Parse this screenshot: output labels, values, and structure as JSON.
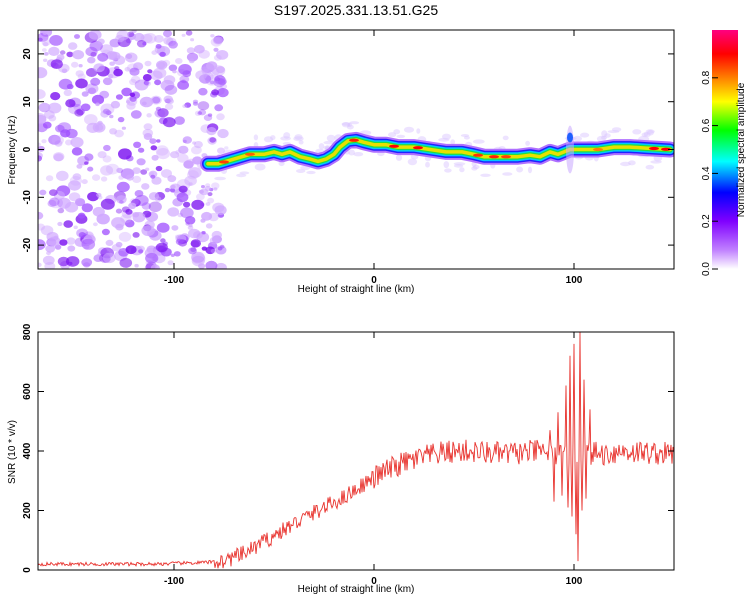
{
  "title": "S197.2025.331.13.51.G25",
  "chart_data": [
    {
      "type": "heatmap",
      "name": "spectrogram",
      "xlabel": "Height of straight line (km)",
      "ylabel": "Frequency (Hz)",
      "xlim": [
        -168,
        150
      ],
      "ylim": [
        -25,
        25
      ],
      "xticks": [
        -100,
        0,
        100
      ],
      "yticks": [
        -20,
        -10,
        0,
        10,
        20
      ],
      "xtick_labels": [
        "-100",
        "0",
        "100"
      ],
      "ytick_labels": [
        "-20",
        "-10",
        "0",
        "10",
        "20"
      ],
      "noise_region_x": [
        -168,
        -75
      ],
      "ridge": {
        "x": [
          -83,
          -78,
          -70,
          -62,
          -55,
          -50,
          -46,
          -42,
          -37,
          -32,
          -28,
          -24,
          -20,
          -17,
          -13,
          -9,
          -5,
          0,
          6,
          12,
          20,
          28,
          36,
          44,
          50,
          55,
          60,
          66,
          72,
          78,
          83,
          88,
          92,
          95,
          98,
          100,
          103,
          106,
          112,
          120,
          128,
          136,
          148
        ],
        "y": [
          -3,
          -3,
          -2,
          -1,
          -1,
          -0.5,
          -1,
          -0.5,
          -1.5,
          -2,
          -2.5,
          -2,
          -1,
          0.5,
          1.8,
          2,
          1.5,
          1,
          1,
          0.5,
          0.5,
          0,
          -0.5,
          -0.5,
          -1,
          -1.5,
          -1.5,
          -1.5,
          -1.5,
          -1.2,
          -1.5,
          -0.5,
          -1,
          -0.5,
          0,
          0,
          0,
          0,
          0,
          0.5,
          0.5,
          0.3,
          0
        ]
      },
      "colorbar": {
        "label": "Normalized spectral amplitude",
        "range": [
          0,
          1
        ],
        "ticks": [
          0.0,
          0.2,
          0.4,
          0.6,
          0.8
        ],
        "tick_labels": [
          "0.0",
          "0.2",
          "0.4",
          "0.6",
          "0.8"
        ],
        "colormap": [
          "#ffffff",
          "#c080ff",
          "#8000ff",
          "#0000ff",
          "#00ffff",
          "#00ff00",
          "#ffff00",
          "#ff8000",
          "#ff0000",
          "#ff0080"
        ]
      }
    },
    {
      "type": "line",
      "name": "snr",
      "xlabel": "Height of straight line (km)",
      "ylabel": "SNR (10 * v/v)",
      "xlim": [
        -168,
        150
      ],
      "ylim": [
        0,
        800
      ],
      "xticks": [
        -100,
        0,
        100
      ],
      "yticks": [
        0,
        200,
        400,
        600,
        800
      ],
      "xtick_labels": [
        "-100",
        "0",
        "100"
      ],
      "ytick_labels": [
        "0",
        "200",
        "400",
        "600",
        "800"
      ],
      "color": "#e8332e",
      "trend": {
        "x": [
          -168,
          -140,
          -110,
          -85,
          -75,
          -65,
          -55,
          -45,
          -35,
          -25,
          -15,
          -5,
          5,
          15,
          25,
          35,
          45,
          55,
          65,
          75,
          85,
          95,
          105,
          115,
          125,
          135,
          150
        ],
        "y": [
          20,
          20,
          20,
          25,
          30,
          55,
          95,
          135,
          175,
          210,
          245,
          290,
          330,
          360,
          380,
          395,
          400,
          395,
          390,
          395,
          400,
          380,
          395,
          390,
          400,
          395,
          390
        ]
      },
      "spikes": [
        {
          "x": 88,
          "y": 470
        },
        {
          "x": 90,
          "y": 230
        },
        {
          "x": 92,
          "y": 530
        },
        {
          "x": 94,
          "y": 250
        },
        {
          "x": 96,
          "y": 620
        },
        {
          "x": 97,
          "y": 210
        },
        {
          "x": 98,
          "y": 720
        },
        {
          "x": 99,
          "y": 180
        },
        {
          "x": 100,
          "y": 760
        },
        {
          "x": 101,
          "y": 120
        },
        {
          "x": 102,
          "y": 30
        },
        {
          "x": 103,
          "y": 800
        },
        {
          "x": 104,
          "y": 200
        },
        {
          "x": 105,
          "y": 640
        },
        {
          "x": 106,
          "y": 240
        },
        {
          "x": 108,
          "y": 540
        }
      ]
    }
  ]
}
